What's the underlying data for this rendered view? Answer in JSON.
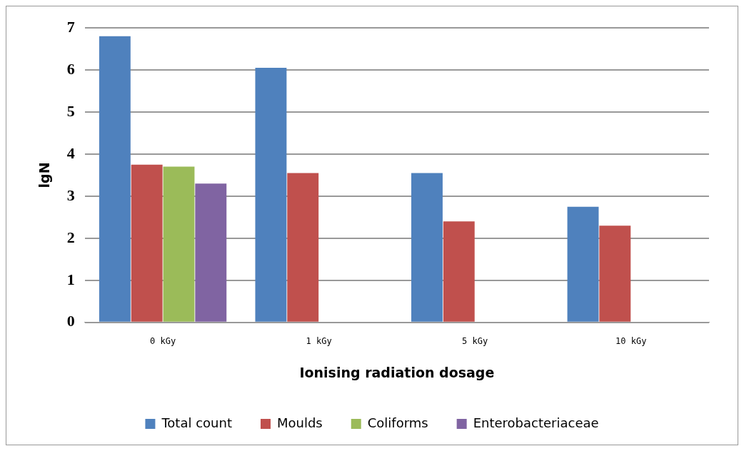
{
  "chart_data": {
    "type": "bar",
    "xlabel": "Ionising radiation dosage",
    "ylabel": "lgN",
    "categories": [
      "0 kGy",
      "1 kGy",
      "5 kGy",
      "10 kGy"
    ],
    "series": [
      {
        "name": "Total count",
        "color": "#4f81bd",
        "values": [
          6.8,
          6.05,
          3.55,
          2.75
        ]
      },
      {
        "name": "Moulds",
        "color": "#c0504d",
        "values": [
          3.75,
          3.55,
          2.4,
          2.3
        ]
      },
      {
        "name": "Coliforms",
        "color": "#9bbb59",
        "values": [
          3.7,
          0,
          0,
          0
        ]
      },
      {
        "name": "Enterobacteriaceae",
        "color": "#8064a2",
        "values": [
          3.3,
          0,
          0,
          0
        ]
      }
    ],
    "ylim": [
      0,
      7
    ],
    "yticks": [
      0,
      1,
      2,
      3,
      4,
      5,
      6,
      7
    ],
    "grid": "y",
    "legend": "bottom"
  }
}
